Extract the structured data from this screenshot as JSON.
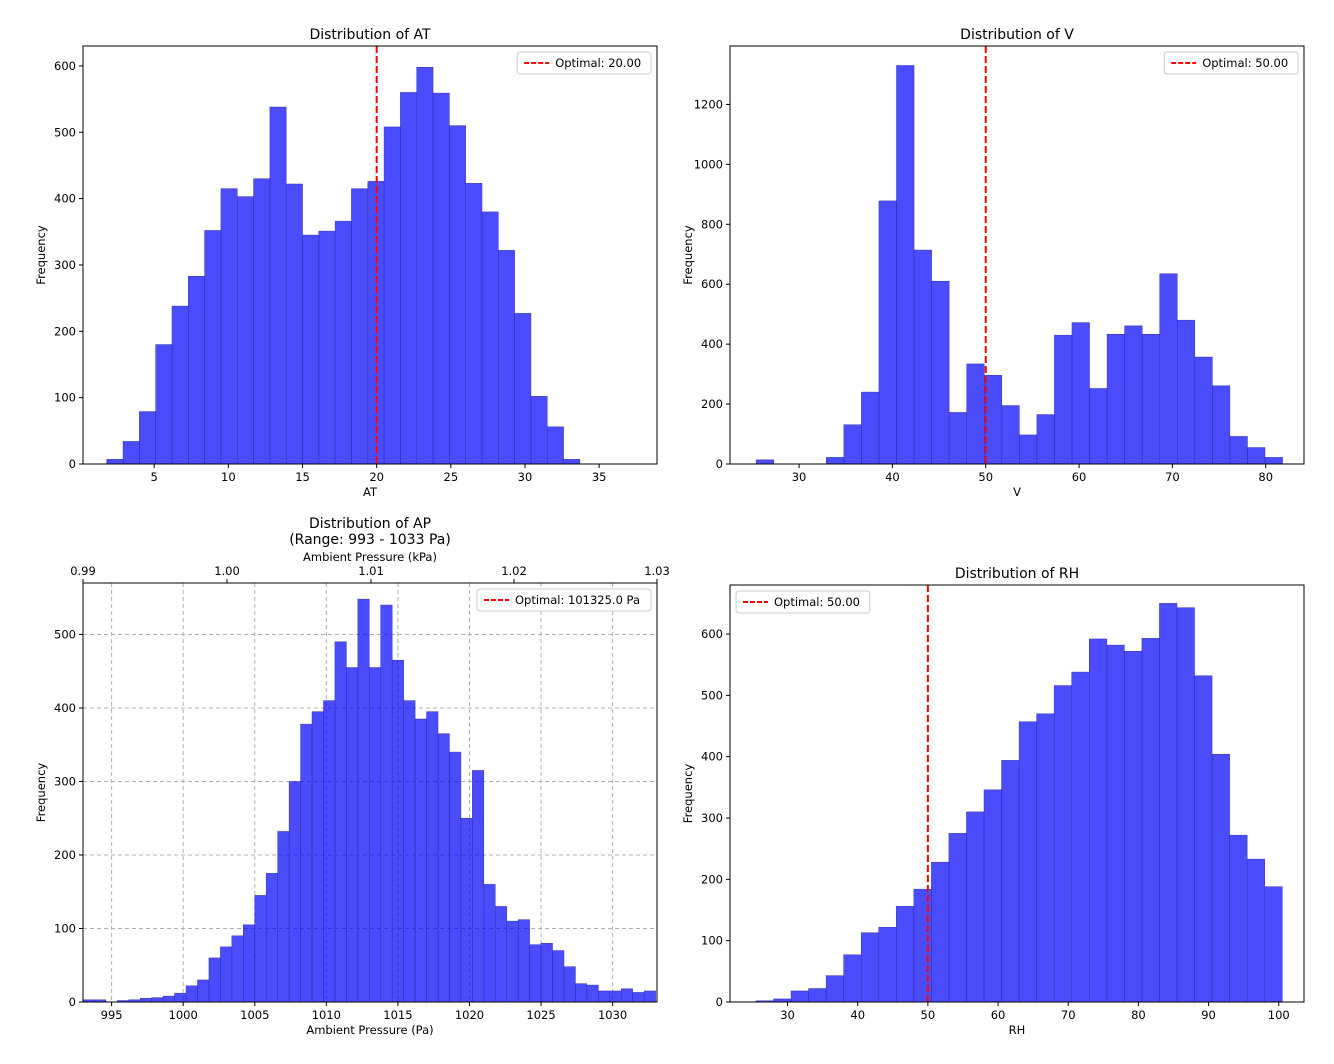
{
  "chart_data": [
    {
      "type": "bar",
      "title": "Distribution of AT",
      "xlabel": "AT",
      "ylabel": "Frequency",
      "xlim": [
        0.2,
        38.9
      ],
      "ylim": [
        0,
        630
      ],
      "xticks": [
        5,
        10,
        15,
        20,
        25,
        30,
        35
      ],
      "yticks": [
        0,
        100,
        200,
        300,
        400,
        500,
        600
      ],
      "grid": false,
      "legend_position": "top-right",
      "bar_color": "#0000ff",
      "bins": {
        "start": 1.8,
        "width": 1.1,
        "counts": [
          7,
          34,
          79,
          180,
          238,
          283,
          352,
          415,
          403,
          430,
          538,
          422,
          345,
          351,
          366,
          415,
          426,
          508,
          560,
          598,
          559,
          510,
          423,
          380,
          322,
          227,
          102,
          56,
          7
        ]
      },
      "reference_line": {
        "x": 20,
        "label": "Optimal: 20.00",
        "color": "#ff0000",
        "style": "dashed"
      }
    },
    {
      "type": "bar",
      "title": "Distribution of V",
      "xlabel": "V",
      "ylabel": "Frequency",
      "xlim": [
        22.6,
        84.1
      ],
      "ylim": [
        0,
        1395
      ],
      "xticks": [
        30,
        40,
        50,
        60,
        70,
        80
      ],
      "yticks": [
        0,
        200,
        400,
        600,
        800,
        1000,
        1200
      ],
      "grid": false,
      "legend_position": "top-right",
      "bar_color": "#0000ff",
      "bins": {
        "start": 25.4,
        "width": 1.88,
        "counts": [
          14,
          0,
          0,
          0,
          22,
          131,
          240,
          878,
          1330,
          714,
          610,
          172,
          334,
          296,
          195,
          97,
          165,
          430,
          472,
          252,
          433,
          461,
          433,
          635,
          480,
          357,
          261,
          92,
          55,
          22
        ]
      },
      "reference_line": {
        "x": 50,
        "label": "Optimal: 50.00",
        "color": "#ff0000",
        "style": "dashed"
      }
    },
    {
      "type": "bar",
      "title": "Distribution of AP",
      "subtitle": "(Range: 993 - 1033 Pa)",
      "xlabel": "Ambient Pressure (Pa)",
      "secondary_xlabel": "Ambient Pressure (kPa)",
      "ylabel": "Frequency",
      "xlim": [
        993,
        1033.1
      ],
      "ylim": [
        0,
        570
      ],
      "xticks": [
        995,
        1000,
        1005,
        1010,
        1015,
        1020,
        1025,
        1030
      ],
      "secondary_xticks": [
        "0.99",
        "1.00",
        "1.01",
        "1.02",
        "1.03"
      ],
      "yticks": [
        0,
        100,
        200,
        300,
        400,
        500
      ],
      "grid": true,
      "legend_position": "top-right",
      "bar_color": "#0000ff",
      "bins": {
        "start": 993.0,
        "width": 0.8,
        "counts": [
          3,
          3,
          0,
          2,
          3,
          5,
          6,
          8,
          12,
          22,
          30,
          60,
          75,
          90,
          105,
          145,
          175,
          232,
          300,
          378,
          395,
          410,
          490,
          455,
          548,
          455,
          540,
          465,
          410,
          385,
          395,
          365,
          340,
          250,
          315,
          160,
          130,
          110,
          112,
          78,
          80,
          70,
          48,
          25,
          23,
          15,
          15,
          18,
          13,
          15
        ]
      },
      "reference_line": {
        "label": "Optimal: 101325.0 Pa",
        "color": "#ff0000",
        "style": "dashed"
      }
    },
    {
      "type": "bar",
      "title": "Distribution of RH",
      "xlabel": "RH",
      "ylabel": "Frequency",
      "xlim": [
        21.8,
        103.6
      ],
      "ylim": [
        0,
        680
      ],
      "xticks": [
        30,
        40,
        50,
        60,
        70,
        80,
        90,
        100
      ],
      "yticks": [
        0,
        100,
        200,
        300,
        400,
        500,
        600
      ],
      "grid": false,
      "legend_position": "top-left",
      "bar_color": "#0000ff",
      "bins": {
        "start": 25.5,
        "width": 2.5,
        "counts": [
          2,
          5,
          18,
          22,
          43,
          77,
          113,
          122,
          156,
          184,
          228,
          275,
          310,
          346,
          394,
          457,
          470,
          516,
          538,
          592,
          582,
          572,
          593,
          650,
          643,
          532,
          404,
          272,
          233,
          188
        ]
      },
      "reference_line": {
        "x": 50,
        "label": "Optimal: 50.00",
        "color": "#ff0000",
        "style": "dashed"
      }
    }
  ]
}
